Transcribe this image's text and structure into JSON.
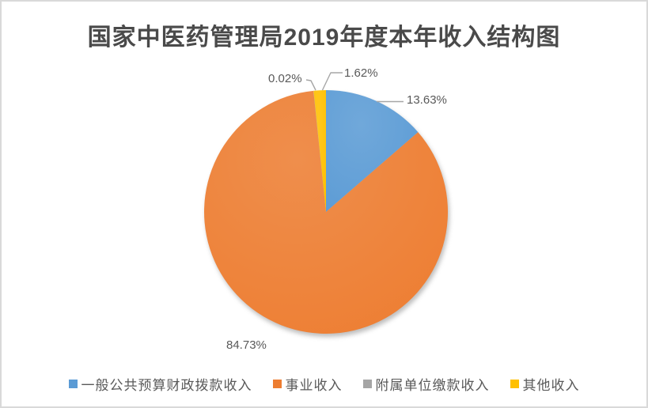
{
  "page": {
    "background": "#FFFFFF",
    "frame_color": "#D9D9D9"
  },
  "chart_data": {
    "type": "pie",
    "title": "国家中医药管理局2019年度本年收入结构图",
    "title_color": "#4A4A4A",
    "label_color": "#595959",
    "leader_line_color": "#A6A6A6",
    "legend_position": "bottom",
    "start_angle_deg": 0,
    "direction": "clockwise",
    "series": [
      {
        "label": "一般公共预算财政拨款收入",
        "value": 13.63,
        "display": "13.63%",
        "color": "#5B9BD5"
      },
      {
        "label": "事业收入",
        "value": 84.73,
        "display": "84.73%",
        "color": "#ED7D31"
      },
      {
        "label": "附属单位缴款收入",
        "value": 0.02,
        "display": "0.02%",
        "color": "#A5A5A5"
      },
      {
        "label": "其他收入",
        "value": 1.62,
        "display": "1.62%",
        "color": "#FFC000"
      }
    ]
  }
}
